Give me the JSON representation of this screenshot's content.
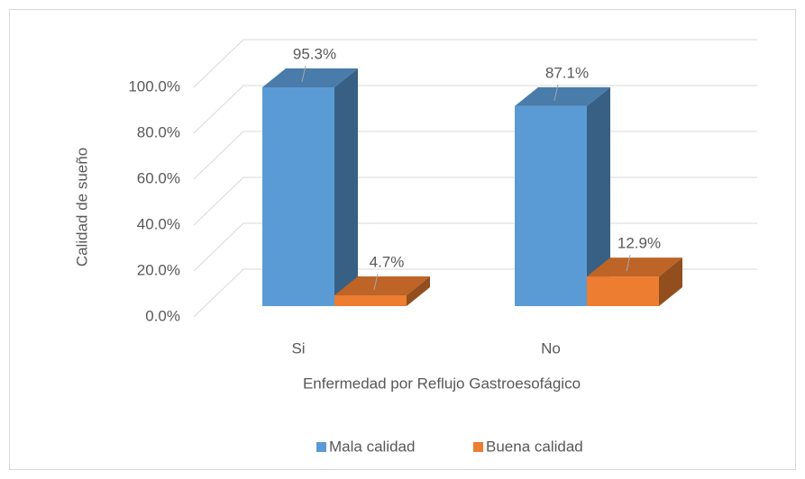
{
  "chart_data": {
    "type": "bar3d",
    "categories": [
      "Si",
      "No"
    ],
    "series": [
      {
        "name": "Mala calidad",
        "color": "#5b9bd5",
        "values": [
          95.3,
          87.1
        ],
        "value_labels": [
          "95.3%",
          "87.1%"
        ]
      },
      {
        "name": "Buena calidad",
        "color": "#ed7d31",
        "values": [
          4.7,
          12.9
        ],
        "value_labels": [
          "4.7%",
          "12.9%"
        ]
      }
    ],
    "ylim": [
      0,
      100
    ],
    "yticks": [
      {
        "value": 0,
        "label": "0.0%"
      },
      {
        "value": 20,
        "label": "20.0%"
      },
      {
        "value": 40,
        "label": "40.0%"
      },
      {
        "value": 60,
        "label": "60.0%"
      },
      {
        "value": 80,
        "label": "80.0%"
      },
      {
        "value": 100,
        "label": "100.0%"
      }
    ],
    "y_label": "Calidad de sueño",
    "x_label": "Enfermedad por Reflujo Gastroesofágico",
    "grid": true,
    "legend": "bottom"
  }
}
